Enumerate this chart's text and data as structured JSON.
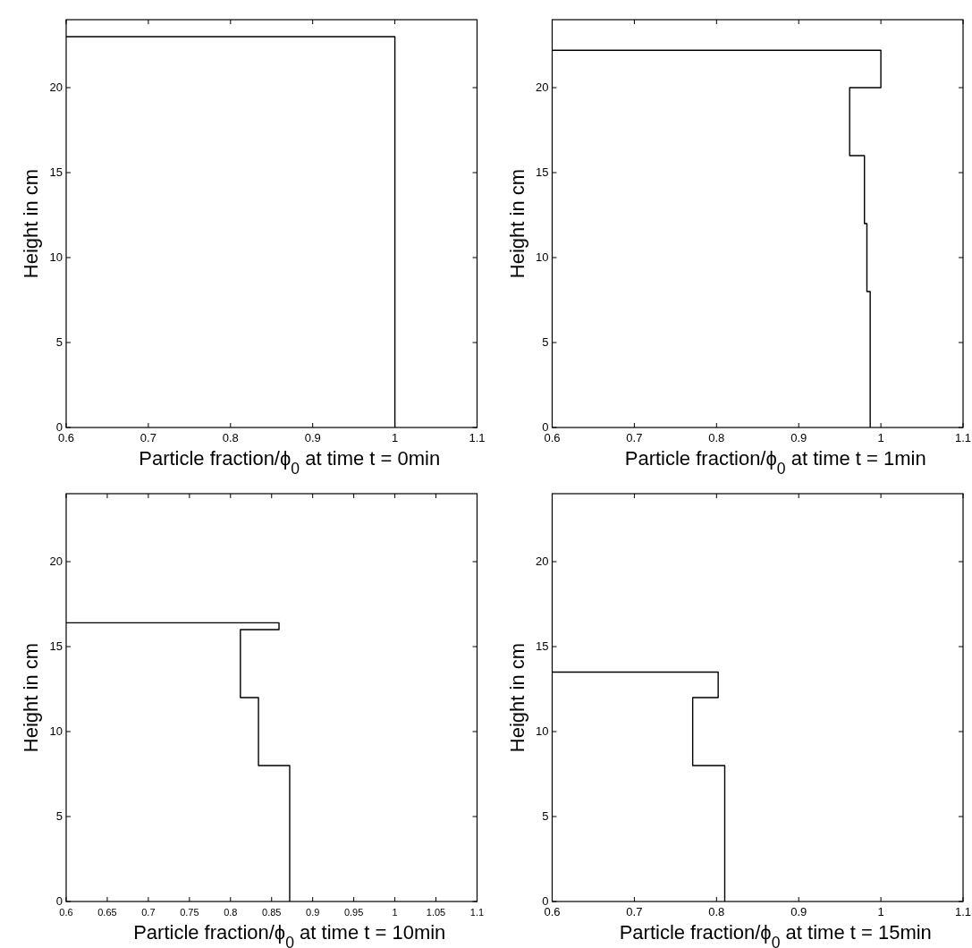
{
  "chart_data": [
    {
      "type": "line",
      "xlabel": "Particle fraction/ϕ$_{0}$ at time t = 0min",
      "ylabel": "Height in cm",
      "x": [
        1,
        1,
        0.6
      ],
      "values": [
        0,
        23,
        23
      ],
      "color": "#000000",
      "xlim": [
        0.6,
        1.1
      ],
      "ylim": [
        0,
        24
      ],
      "xticks": [
        0.6,
        0.7,
        0.8,
        0.9,
        1,
        1.1
      ],
      "yticks": [
        0,
        5,
        10,
        15,
        20
      ]
    },
    {
      "type": "line",
      "xlabel": "Particle fraction/ϕ$_{0}$ at time t = 1min",
      "ylabel": "Height in cm",
      "x": [
        0.987,
        0.987,
        0.983,
        0.983,
        0.98,
        0.98,
        0.962,
        0.962,
        1,
        1,
        0.6
      ],
      "values": [
        0,
        8,
        8,
        12,
        12,
        16,
        16,
        20,
        20,
        22.2,
        22.2
      ],
      "color": "#000000",
      "xlim": [
        0.6,
        1.1
      ],
      "ylim": [
        0,
        24
      ],
      "xticks": [
        0.6,
        0.7,
        0.8,
        0.9,
        1,
        1.1
      ],
      "yticks": [
        0,
        5,
        10,
        15,
        20
      ]
    },
    {
      "type": "line",
      "xlabel": "Particle fraction/ϕ$_{0}$ at time t = 10min",
      "ylabel": "Height in cm",
      "x": [
        0.872,
        0.872,
        0.834,
        0.834,
        0.812,
        0.812,
        0.859,
        0.859,
        0.6
      ],
      "values": [
        0,
        8,
        8,
        12,
        12,
        16,
        16,
        16.4,
        16.4
      ],
      "color": "#000000",
      "xlim": [
        0.6,
        1.1
      ],
      "ylim": [
        0,
        24
      ],
      "xticks": [
        0.6,
        0.65,
        0.7,
        0.75,
        0.8,
        0.85,
        0.9,
        0.95,
        1,
        1.05,
        1.1
      ],
      "yticks": [
        0,
        5,
        10,
        15,
        20
      ]
    },
    {
      "type": "line",
      "xlabel": "Particle fraction/ϕ$_{0}$ at time t = 15min",
      "ylabel": "Height in cm",
      "x": [
        0.81,
        0.81,
        0.771,
        0.771,
        0.802,
        0.802,
        0.6
      ],
      "values": [
        0,
        8,
        8,
        12,
        12,
        13.5,
        13.5
      ],
      "color": "#000000",
      "xlim": [
        0.6,
        1.1
      ],
      "ylim": [
        0,
        24
      ],
      "xticks": [
        0.6,
        0.7,
        0.8,
        0.9,
        1,
        1.1
      ],
      "yticks": [
        0,
        5,
        10,
        15,
        20
      ]
    }
  ]
}
